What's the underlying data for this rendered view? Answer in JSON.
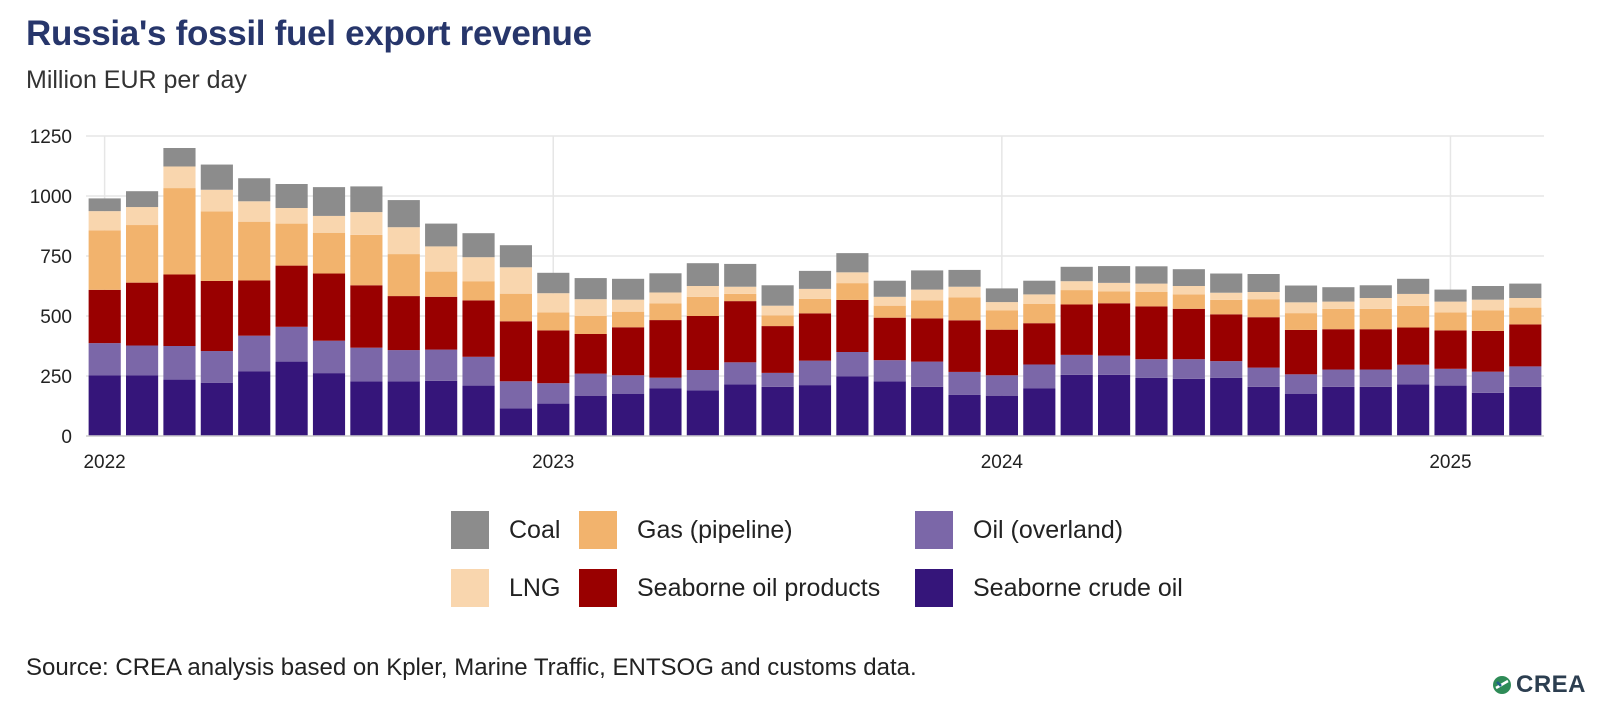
{
  "title": "Russia's fossil fuel export revenue",
  "subtitle": "Million EUR per day",
  "source": "Source: CREA analysis based on Kpler, Marine Traffic, ENTSOG and customs data.",
  "brand": "CREA",
  "legend": [
    {
      "label": "Coal",
      "color": "#8c8c8c"
    },
    {
      "label": "Gas (pipeline)",
      "color": "#f2b36d"
    },
    {
      "label": "Oil (overland)",
      "color": "#7b67a8"
    },
    {
      "label": "LNG",
      "color": "#f9d6ae"
    },
    {
      "label": "Seaborne oil products",
      "color": "#990000"
    },
    {
      "label": "Seaborne crude oil",
      "color": "#35157a"
    }
  ],
  "chart_data": {
    "type": "bar",
    "stacked": true,
    "ylabel": "Million EUR per day",
    "ylim": [
      0,
      1250
    ],
    "yticks": [
      0,
      250,
      500,
      750,
      1000,
      1250
    ],
    "xticks": [
      "2022",
      "2023",
      "2024",
      "2025"
    ],
    "grid": true,
    "x": [
      "2022-01",
      "2022-02",
      "2022-03",
      "2022-04",
      "2022-05",
      "2022-06",
      "2022-07",
      "2022-08",
      "2022-09",
      "2022-10",
      "2022-11",
      "2022-12",
      "2023-01",
      "2023-02",
      "2023-03",
      "2023-04",
      "2023-05",
      "2023-06",
      "2023-07",
      "2023-08",
      "2023-09",
      "2023-10",
      "2023-11",
      "2023-12",
      "2024-01",
      "2024-02",
      "2024-03",
      "2024-04",
      "2024-05",
      "2024-06",
      "2024-07",
      "2024-08",
      "2024-09",
      "2024-10",
      "2024-11",
      "2024-12",
      "2025-01",
      "2025-02",
      "2025-03"
    ],
    "series": [
      {
        "name": "Seaborne crude oil",
        "color": "#35157a",
        "values": [
          252,
          252,
          235,
          222,
          270,
          310,
          262,
          228,
          228,
          230,
          210,
          115,
          135,
          168,
          175,
          198,
          190,
          215,
          205,
          212,
          248,
          228,
          205,
          172,
          168,
          198,
          255,
          255,
          242,
          238,
          242,
          205,
          175,
          205,
          205,
          215,
          210,
          180,
          205
        ]
      },
      {
        "name": "Oil (overland)",
        "color": "#7b67a8",
        "values": [
          135,
          125,
          140,
          132,
          148,
          145,
          135,
          140,
          130,
          130,
          120,
          113,
          85,
          92,
          78,
          45,
          85,
          92,
          58,
          102,
          102,
          88,
          105,
          95,
          85,
          100,
          83,
          80,
          78,
          82,
          70,
          80,
          82,
          72,
          72,
          82,
          70,
          88,
          85
        ]
      },
      {
        "name": "Seaborne oil products",
        "color": "#990000",
        "values": [
          222,
          262,
          298,
          292,
          230,
          255,
          280,
          260,
          225,
          220,
          235,
          250,
          220,
          165,
          200,
          240,
          225,
          255,
          195,
          197,
          217,
          177,
          180,
          215,
          190,
          172,
          210,
          218,
          220,
          210,
          195,
          210,
          185,
          168,
          168,
          155,
          160,
          170,
          175
        ]
      },
      {
        "name": "Gas (pipeline)",
        "color": "#f2b36d",
        "values": [
          248,
          240,
          360,
          290,
          245,
          175,
          170,
          210,
          175,
          105,
          80,
          115,
          75,
          75,
          65,
          70,
          80,
          30,
          45,
          60,
          70,
          50,
          75,
          95,
          80,
          80,
          60,
          50,
          60,
          60,
          60,
          75,
          70,
          85,
          85,
          90,
          75,
          85,
          70
        ]
      },
      {
        "name": "LNG",
        "color": "#f9d6ae",
        "values": [
          80,
          75,
          90,
          90,
          85,
          65,
          70,
          95,
          112,
          105,
          100,
          110,
          80,
          70,
          50,
          45,
          45,
          30,
          40,
          42,
          45,
          37,
          45,
          45,
          35,
          40,
          37,
          35,
          35,
          35,
          30,
          30,
          45,
          30,
          45,
          50,
          45,
          45,
          40
        ]
      },
      {
        "name": "Coal",
        "color": "#8c8c8c",
        "values": [
          53,
          66,
          77,
          105,
          96,
          100,
          120,
          107,
          113,
          95,
          100,
          92,
          85,
          88,
          87,
          80,
          95,
          95,
          85,
          75,
          80,
          67,
          80,
          70,
          57,
          57,
          60,
          70,
          72,
          70,
          80,
          75,
          70,
          60,
          53,
          63,
          50,
          57,
          60
        ]
      }
    ]
  }
}
